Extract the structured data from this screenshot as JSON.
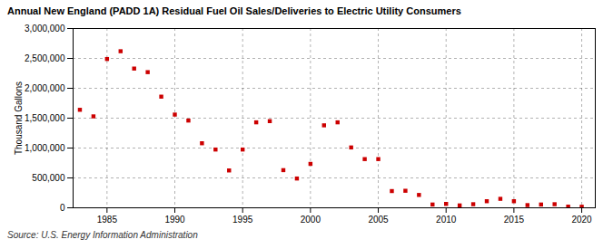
{
  "chart_data": {
    "type": "scatter",
    "title": "Annual New England (PADD 1A) Residual Fuel Oil Sales/Deliveries to Electric Utility Consumers",
    "ylabel": "Thousand Gallons",
    "annotations": [
      "Source: U.S. Energy Information Administration"
    ],
    "x": [
      1983,
      1984,
      1985,
      1986,
      1987,
      1988,
      1989,
      1990,
      1991,
      1992,
      1993,
      1994,
      1995,
      1996,
      1997,
      1998,
      1999,
      2000,
      2001,
      2002,
      2003,
      2004,
      2005,
      2006,
      2007,
      2008,
      2009,
      2010,
      2011,
      2012,
      2013,
      2014,
      2015,
      2016,
      2017,
      2018,
      2019,
      2020
    ],
    "values": [
      1640000,
      1530000,
      2490000,
      2620000,
      2330000,
      2270000,
      1860000,
      1560000,
      1460000,
      1080000,
      975000,
      625000,
      975000,
      1430000,
      1450000,
      630000,
      490000,
      735000,
      1380000,
      1430000,
      1010000,
      815000,
      815000,
      280000,
      285000,
      215000,
      55000,
      65000,
      40000,
      60000,
      110000,
      150000,
      110000,
      45000,
      55000,
      60000,
      20000,
      18000
    ],
    "color": "#cc0000",
    "marker": "square",
    "xlim": [
      1982.5,
      2021
    ],
    "xticks": [
      1985,
      1990,
      1995,
      2000,
      2005,
      2010,
      2015,
      2020
    ],
    "ylim": [
      0,
      3000000
    ],
    "yticks": [
      0,
      {
        "value": 500000,
        "label": "500,000"
      },
      {
        "value": 1000000,
        "label": "1,000,000"
      },
      {
        "value": 1500000,
        "label": "1,500,000"
      },
      {
        "value": 2000000,
        "label": "2,000,000"
      },
      {
        "value": 2500000,
        "label": "2,500,000"
      },
      {
        "value": 3000000,
        "label": "3,000,000"
      }
    ],
    "grid": true
  }
}
